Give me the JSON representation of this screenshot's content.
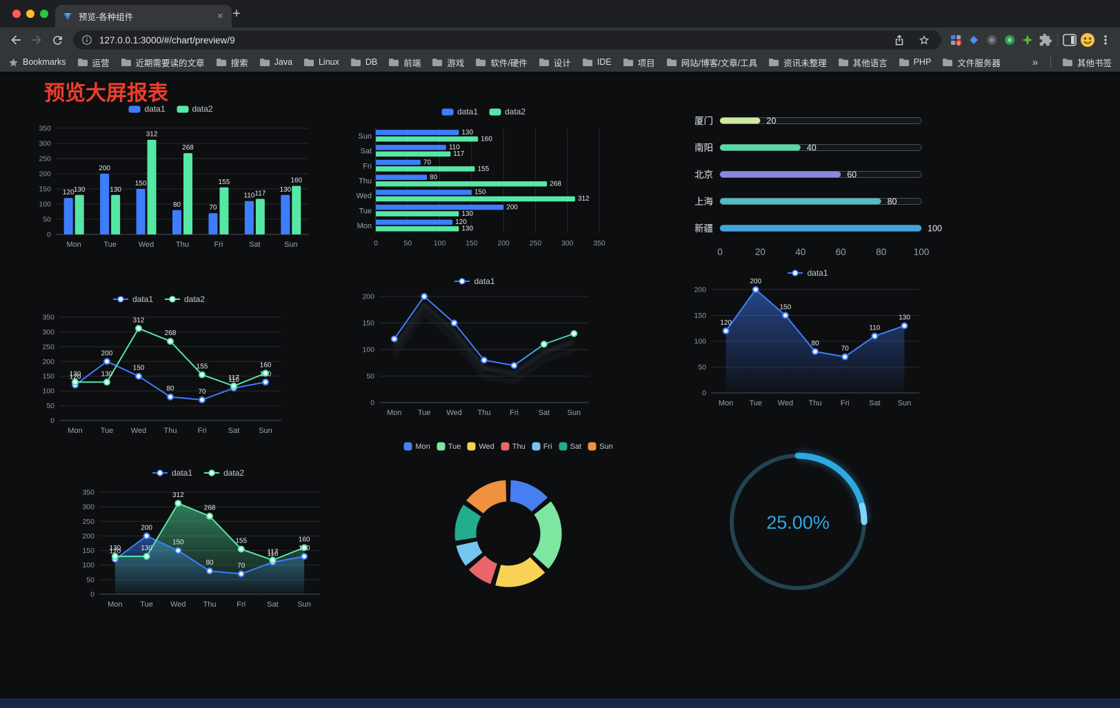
{
  "window": {
    "tab_title": "预览-各种组件",
    "url": "127.0.0.1:3000/#/chart/preview/9"
  },
  "bookmarks": {
    "first": "Bookmarks",
    "folders": [
      "运营",
      "近期需要读的文章",
      "搜索",
      "Java",
      "Linux",
      "DB",
      "前端",
      "游戏",
      "软件/硬件",
      "设计",
      "IDE",
      "项目",
      "网站/博客/文章/工具",
      "资讯未整理",
      "其他语言",
      "PHP",
      "文件服务器"
    ],
    "overflow": "»",
    "other_bookmarks": "其他书签"
  },
  "page": {
    "title": "预览大屏报表"
  },
  "chart_data": [
    {
      "id": "bar-grouped",
      "type": "bar",
      "categories": [
        "Mon",
        "Tue",
        "Wed",
        "Thu",
        "Fri",
        "Sat",
        "Sun"
      ],
      "series": [
        {
          "name": "data1",
          "color": "#3D7EFE",
          "values": [
            120,
            200,
            150,
            80,
            70,
            110,
            130
          ]
        },
        {
          "name": "data2",
          "color": "#55E8A5",
          "values": [
            130,
            130,
            312,
            268,
            155,
            117,
            160
          ]
        }
      ],
      "ylim": [
        0,
        350
      ],
      "yticks": [
        0,
        50,
        100,
        150,
        200,
        250,
        300,
        350
      ],
      "legend_position": "top",
      "value_labels": true,
      "grid": true
    },
    {
      "id": "bar-horizontal",
      "type": "bar",
      "orientation": "horizontal",
      "categories": [
        "Mon",
        "Tue",
        "Wed",
        "Thu",
        "Fri",
        "Sat",
        "Sun"
      ],
      "series": [
        {
          "name": "data1",
          "color": "#3D7EFE",
          "values": [
            120,
            200,
            150,
            80,
            70,
            110,
            130
          ]
        },
        {
          "name": "data2",
          "color": "#55E8A5",
          "values": [
            130,
            130,
            312,
            268,
            155,
            117,
            160
          ]
        }
      ],
      "xlim": [
        0,
        350
      ],
      "xticks": [
        0,
        50,
        100,
        150,
        200,
        250,
        300,
        350
      ],
      "legend_position": "top",
      "value_labels": true,
      "grid": true
    },
    {
      "id": "progress",
      "type": "bar",
      "orientation": "horizontal-capsule",
      "rows": [
        {
          "label": "厦门",
          "value": 20,
          "color": "#CFE9A2"
        },
        {
          "label": "南阳",
          "value": 40,
          "color": "#58D9A6"
        },
        {
          "label": "北京",
          "value": 60,
          "color": "#8A87E0"
        },
        {
          "label": "上海",
          "value": 80,
          "color": "#54BCC0"
        },
        {
          "label": "新疆",
          "value": 100,
          "color": "#3FA6DD"
        }
      ],
      "xlim": [
        0,
        100
      ],
      "xticks": [
        0,
        20,
        40,
        60,
        80,
        100
      ],
      "value_labels": true
    },
    {
      "id": "line-two",
      "type": "line",
      "categories": [
        "Mon",
        "Tue",
        "Wed",
        "Thu",
        "Fri",
        "Sat",
        "Sun"
      ],
      "series": [
        {
          "name": "data1",
          "color": "#3D7EFE",
          "values": [
            120,
            200,
            150,
            80,
            70,
            110,
            130
          ]
        },
        {
          "name": "data2",
          "color": "#55E8A5",
          "values": [
            130,
            130,
            312,
            268,
            155,
            117,
            160
          ]
        }
      ],
      "ylim": [
        0,
        350
      ],
      "yticks": [
        0,
        50,
        100,
        150,
        200,
        250,
        300,
        350
      ],
      "legend_position": "top",
      "value_labels": true,
      "markers": true
    },
    {
      "id": "line-gradient",
      "type": "line",
      "categories": [
        "Mon",
        "Tue",
        "Wed",
        "Thu",
        "Fri",
        "Sat",
        "Sun"
      ],
      "series": [
        {
          "name": "data1",
          "color": "#3D7EFE",
          "color_end": "#55E8A5",
          "values": [
            120,
            200,
            150,
            80,
            70,
            110,
            130
          ]
        }
      ],
      "ylim": [
        0,
        200
      ],
      "yticks": [
        0,
        50,
        100,
        150,
        200
      ],
      "legend_position": "top",
      "value_labels": false,
      "markers": true,
      "effect": "shadow-trail"
    },
    {
      "id": "area-single",
      "type": "area",
      "categories": [
        "Mon",
        "Tue",
        "Wed",
        "Thu",
        "Fri",
        "Sat",
        "Sun"
      ],
      "series": [
        {
          "name": "data1",
          "color": "#3D7EFE",
          "fill": true,
          "values": [
            120,
            200,
            150,
            80,
            70,
            110,
            130
          ]
        }
      ],
      "ylim": [
        0,
        200
      ],
      "yticks": [
        0,
        50,
        100,
        150,
        200
      ],
      "legend_position": "top",
      "value_labels": true,
      "markers": true
    },
    {
      "id": "area-two",
      "type": "area",
      "categories": [
        "Mon",
        "Tue",
        "Wed",
        "Thu",
        "Fri",
        "Sat",
        "Sun"
      ],
      "series": [
        {
          "name": "data1",
          "color": "#3D7EFE",
          "fill": true,
          "values": [
            120,
            200,
            150,
            80,
            70,
            110,
            130
          ]
        },
        {
          "name": "data2",
          "color": "#55E8A5",
          "fill": true,
          "values": [
            130,
            130,
            312,
            268,
            155,
            117,
            160
          ]
        }
      ],
      "ylim": [
        0,
        350
      ],
      "yticks": [
        0,
        50,
        100,
        150,
        200,
        250,
        300,
        350
      ],
      "legend_position": "top",
      "value_labels": true,
      "markers": true
    },
    {
      "id": "donut",
      "type": "pie",
      "labels": [
        "Mon",
        "Tue",
        "Wed",
        "Thu",
        "Fri",
        "Sat",
        "Sun"
      ],
      "values": [
        120,
        200,
        150,
        80,
        70,
        110,
        130
      ],
      "colors": [
        "#477EF0",
        "#7DE6A1",
        "#F7D254",
        "#E8666B",
        "#74C6EE",
        "#22AD8C",
        "#F0913F"
      ],
      "donut": true,
      "legend_position": "top"
    },
    {
      "id": "gauge",
      "type": "gauge",
      "value_percent": 25,
      "label": "25.00%",
      "color": "#2EA8E0",
      "track_color": "#23444F"
    }
  ]
}
